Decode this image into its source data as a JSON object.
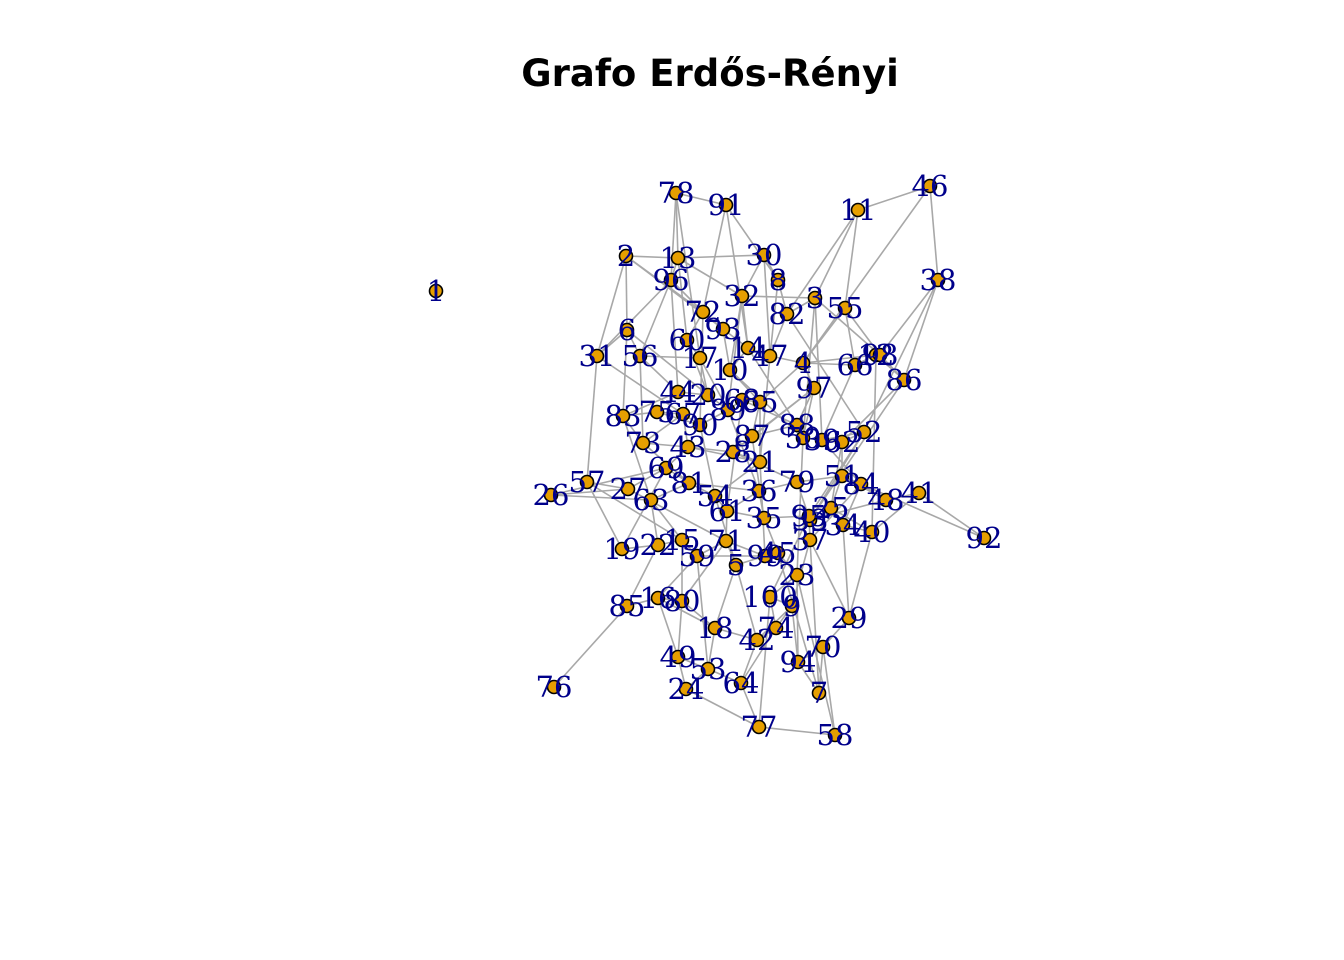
{
  "title": "Grafo Erdős-Rényi",
  "colors": {
    "edge": "#a8a8a8",
    "vertex_fill": "#e69f00",
    "vertex_border": "#000000",
    "vertex_label": "#00008b"
  },
  "graph": {
    "type": "undirected random graph (Erdős-Rényi)",
    "vertices": [
      "1",
      "2",
      "3",
      "4",
      "5",
      "6",
      "7",
      "8",
      "9",
      "10",
      "11",
      "12",
      "13",
      "14",
      "15",
      "16",
      "17",
      "18",
      "19",
      "20",
      "21",
      "22",
      "23",
      "24",
      "25",
      "26",
      "27",
      "28",
      "29",
      "30",
      "31",
      "32",
      "33",
      "34",
      "35",
      "36",
      "37",
      "38",
      "39",
      "40",
      "41",
      "42",
      "43",
      "44",
      "45",
      "46",
      "47",
      "48",
      "49",
      "50",
      "51",
      "52",
      "53",
      "54",
      "55",
      "56",
      "57",
      "58",
      "59",
      "60",
      "61",
      "62",
      "63",
      "64",
      "65",
      "66",
      "67",
      "68",
      "69",
      "70",
      "71",
      "72",
      "73",
      "74",
      "75",
      "76",
      "77",
      "78",
      "79",
      "80",
      "81",
      "82",
      "83",
      "84",
      "85",
      "86",
      "87",
      "88",
      "89",
      "90",
      "91",
      "92",
      "93",
      "94",
      "95",
      "96",
      "97",
      "98",
      "99",
      "100"
    ]
  }
}
